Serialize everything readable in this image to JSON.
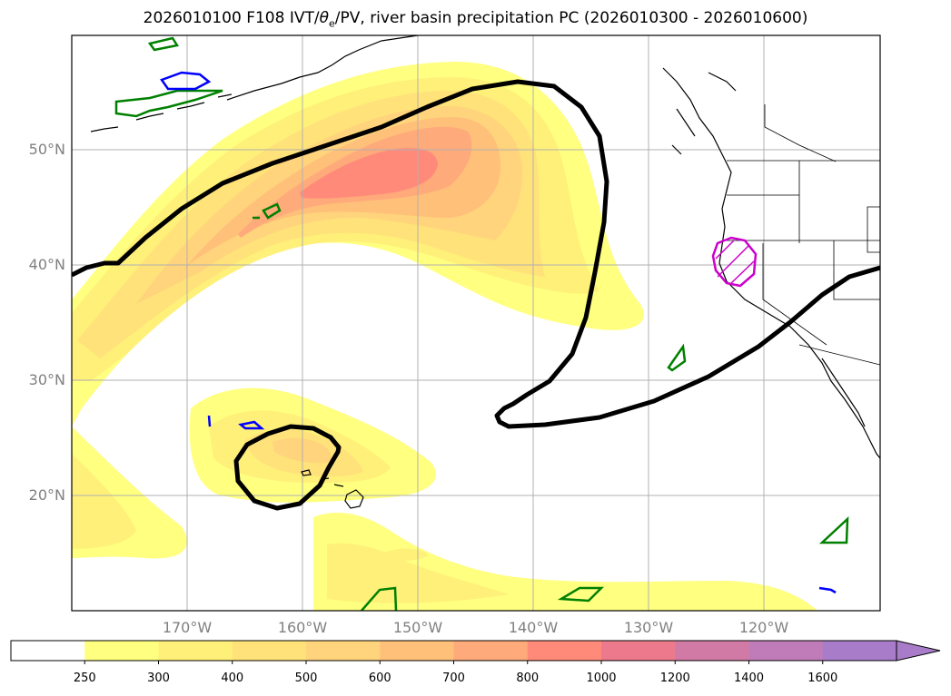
{
  "title": {
    "run": "2026010100 F108 IVT/",
    "theta_symbol": "θ",
    "theta_sub": "e",
    "rest": "/PV, river basin precipitation PC (2026010300 - 2026010600)"
  },
  "axes": {
    "lat_labels": [
      "50°N",
      "40°N",
      "30°N",
      "20°N"
    ],
    "lon_labels": [
      "170°W",
      "160°W",
      "150°W",
      "140°W",
      "130°W",
      "120°W"
    ]
  },
  "colorbar": {
    "levels": [
      "250",
      "300",
      "400",
      "500",
      "600",
      "700",
      "800",
      "1000",
      "1200",
      "1400",
      "1600"
    ],
    "colors": [
      "#ffffff",
      "#ffff80",
      "#fff07a",
      "#ffe27a",
      "#ffd47c",
      "#ffc07a",
      "#ffaa7a",
      "#ff8a7a",
      "#ec7a8c",
      "#d27aa6",
      "#c07cb8",
      "#a87cc8"
    ]
  },
  "colors": {
    "ivt_lowest": "#ffff80",
    "ivt_highest": "#ff8a7a",
    "pv_contour": "#000000",
    "theta_e_green": "#008000",
    "theta_e_blue": "#0000ff",
    "river_basin_pc": "#cc00cc",
    "grid": "#b0b0b0",
    "tick_labels": "#808080"
  }
}
